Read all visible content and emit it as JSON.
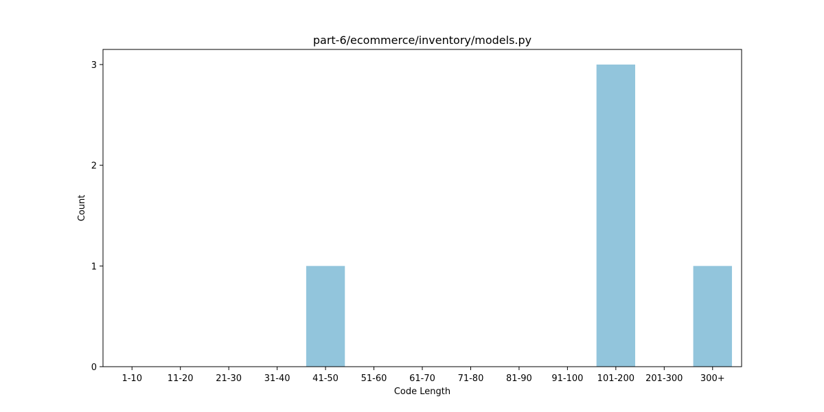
{
  "chart_data": {
    "type": "bar",
    "title": "part-6/ecommerce/inventory/models.py",
    "xlabel": "Code Length",
    "ylabel": "Count",
    "categories": [
      "1-10",
      "11-20",
      "21-30",
      "31-40",
      "41-50",
      "51-60",
      "61-70",
      "71-80",
      "81-90",
      "91-100",
      "101-200",
      "201-300",
      "300+"
    ],
    "values": [
      0,
      0,
      0,
      0,
      1,
      0,
      0,
      0,
      0,
      0,
      3,
      0,
      1
    ],
    "ylim": [
      0,
      3.15
    ],
    "yticks": [
      "0",
      "1",
      "2",
      "3"
    ],
    "grid": false,
    "bar_color": "#92c5dc"
  }
}
